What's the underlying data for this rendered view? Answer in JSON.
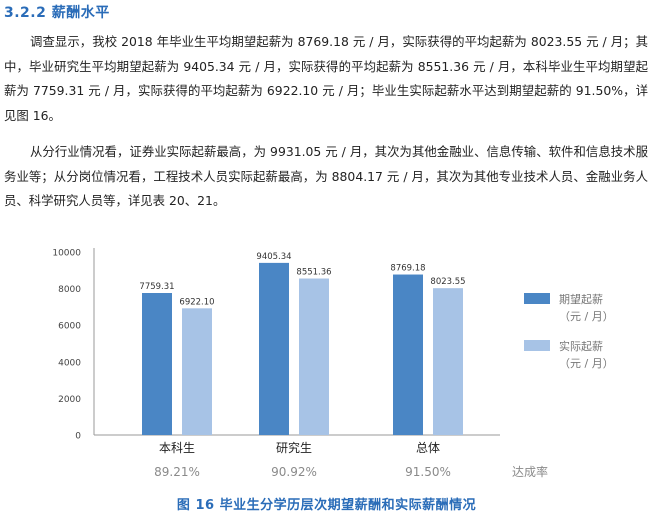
{
  "section": {
    "title": "3.2.2  薪酬水平"
  },
  "paragraphs": [
    "调查显示，我校 2018 年毕业生平均期望起薪为 8769.18 元 / 月，实际获得的平均起薪为 8023.55 元 / 月；其中，毕业研究生平均期望起薪为 9405.34 元 / 月，实际获得的平均起薪为 8551.36 元 / 月，本科毕业生平均期望起薪为 7759.31 元 / 月，实际获得的平均起薪为 6922.10 元 / 月；毕业生实际起薪水平达到期望起薪的 91.50%，详见图 16。",
    "从分行业情况看，证券业实际起薪最高，为 9931.05 元 / 月，其次为其他金融业、信息传输、软件和信息技术服务业等；从分岗位情况看，工程技术人员实际起薪最高，为 8804.17 元 / 月，其次为其他专业技术人员、金融业务人员、科学研究人员等，详见表 20、21。"
  ],
  "chart_data": {
    "type": "bar",
    "categories": [
      "本科生",
      "研究生",
      "总体"
    ],
    "series": [
      {
        "name": "期望起薪\n（元 / 月）",
        "values": [
          7759.31,
          9405.34,
          8769.18
        ],
        "color": "#4a86c5"
      },
      {
        "name": "实际起薪\n（元 / 月）",
        "values": [
          6922.1,
          8551.36,
          8023.55
        ],
        "color": "#a7c3e6"
      }
    ],
    "ylim": [
      0,
      10000
    ],
    "yticks": [
      0,
      2000,
      4000,
      6000,
      8000,
      10000
    ],
    "grid": false,
    "legend_position": "right",
    "rates_label": "达成率",
    "rates": [
      "89.21%",
      "90.92%",
      "91.50%"
    ]
  },
  "figure": {
    "caption": "图  16    毕业生分学历层次期望薪酬和实际薪酬情况"
  }
}
